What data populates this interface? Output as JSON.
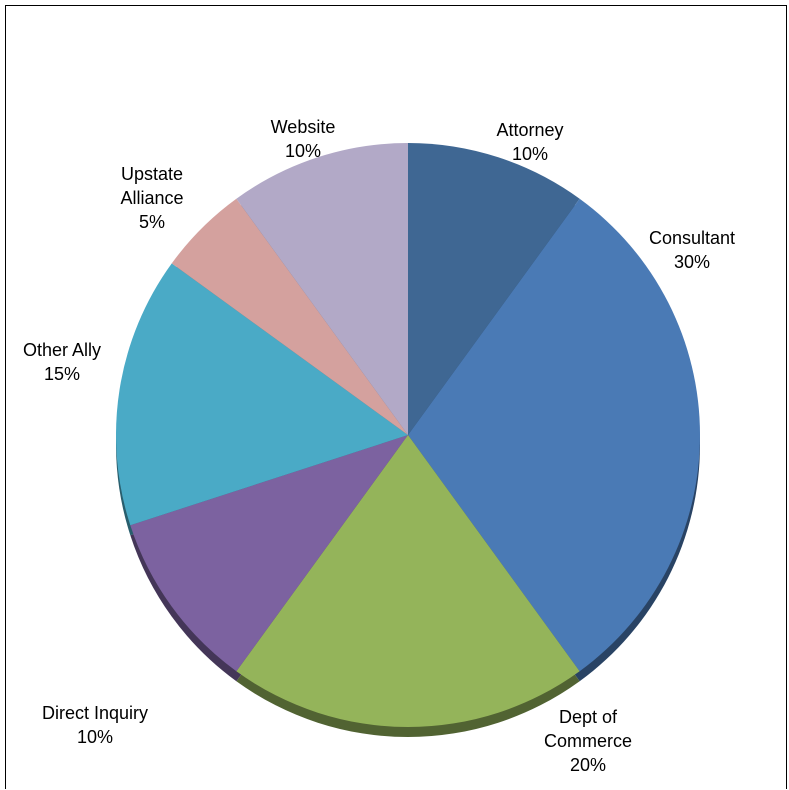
{
  "chart_data": {
    "type": "pie",
    "title": "",
    "start_angle_deg": 0,
    "direction": "clockwise",
    "slices": [
      {
        "label": "Attorney",
        "value": 10,
        "value_label": "10%",
        "color": "#3f6793"
      },
      {
        "label": "Consultant",
        "value": 30,
        "value_label": "30%",
        "color": "#4a7ab5"
      },
      {
        "label": "Dept of\nCommerce",
        "value": 20,
        "value_label": "20%",
        "color": "#94b45a"
      },
      {
        "label": "Direct Inquiry",
        "value": 10,
        "value_label": "10%",
        "color": "#7c62a0"
      },
      {
        "label": "Other Ally",
        "value": 15,
        "value_label": "15%",
        "color": "#4aaac6"
      },
      {
        "label": "Upstate\nAlliance",
        "value": 5,
        "value_label": "5%",
        "color": "#d4a19e"
      },
      {
        "label": "Website",
        "value": 10,
        "value_label": "10%",
        "color": "#b2a9c7"
      }
    ]
  }
}
